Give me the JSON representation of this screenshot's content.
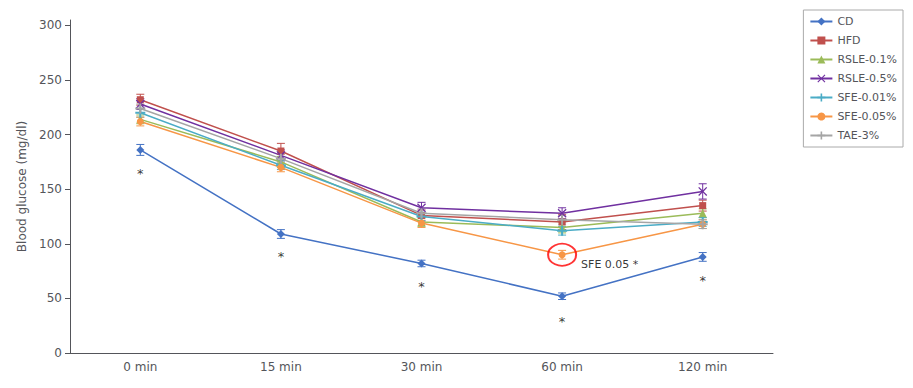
{
  "chart_data": {
    "type": "line",
    "categories": [
      "0 min",
      "15 min",
      "30 min",
      "60 min",
      "120 min"
    ],
    "series": [
      {
        "name": "CD",
        "color": "#4472C4",
        "marker": "diamond",
        "values": [
          186,
          109,
          82,
          52,
          88
        ],
        "errors": [
          5,
          4,
          3,
          3,
          4
        ]
      },
      {
        "name": "HFD",
        "color": "#C0504D",
        "marker": "square",
        "values": [
          232,
          185,
          126,
          120,
          135
        ],
        "errors": [
          5,
          7,
          5,
          7,
          5
        ]
      },
      {
        "name": "RSLE-0.1%",
        "color": "#9BBB59",
        "marker": "triangle",
        "values": [
          214,
          175,
          120,
          115,
          128
        ],
        "errors": [
          4,
          5,
          4,
          5,
          4
        ]
      },
      {
        "name": "RSLE-0.5%",
        "color": "#7030A0",
        "marker": "x",
        "values": [
          228,
          181,
          133,
          128,
          148
        ],
        "errors": [
          5,
          5,
          5,
          5,
          7
        ]
      },
      {
        "name": "SFE-0.01%",
        "color": "#4BACC6",
        "marker": "plus",
        "values": [
          220,
          172,
          125,
          112,
          120
        ],
        "errors": [
          4,
          4,
          4,
          4,
          4
        ]
      },
      {
        "name": "SFE-0.05%",
        "color": "#F79646",
        "marker": "circle",
        "values": [
          212,
          170,
          119,
          90,
          118
        ],
        "errors": [
          4,
          4,
          4,
          4,
          4
        ]
      },
      {
        "name": "TAE-3%",
        "color": "#A5A5A5",
        "marker": "plus",
        "values": [
          224,
          178,
          128,
          122,
          118
        ],
        "errors": [
          4,
          4,
          4,
          4,
          4
        ]
      }
    ],
    "ylabel": "Blood glucose (mg/dl)",
    "ylim": [
      0,
      305
    ],
    "yticks": [
      0,
      50,
      100,
      150,
      200,
      250,
      300
    ],
    "annotations": [
      {
        "text": "*",
        "x": "0 min",
        "y": 170
      },
      {
        "text": "*",
        "x": "15 min",
        "y": 94
      },
      {
        "text": "*",
        "x": "30 min",
        "y": 67
      },
      {
        "text": "*",
        "x": "60 min",
        "y": 35
      },
      {
        "text": "*",
        "x": "120 min",
        "y": 72
      },
      {
        "text": "SFE 0.05 *",
        "x": "60 min",
        "y": 90,
        "marker": "circle",
        "color": "red"
      }
    ],
    "legend": "upper right",
    "grid": false
  }
}
